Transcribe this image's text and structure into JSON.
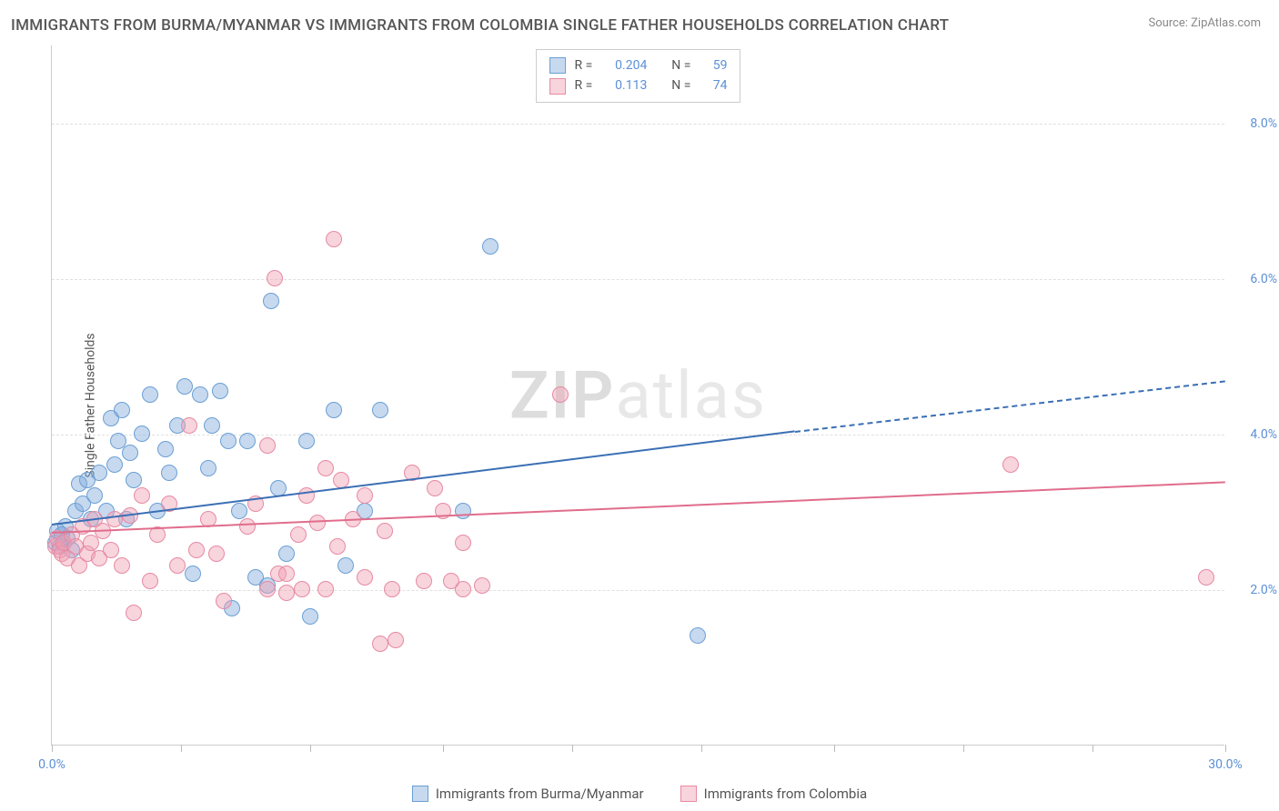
{
  "title": "IMMIGRANTS FROM BURMA/MYANMAR VS IMMIGRANTS FROM COLOMBIA SINGLE FATHER HOUSEHOLDS CORRELATION CHART",
  "source": "Source: ZipAtlas.com",
  "y_axis_label": "Single Father Households",
  "watermark_a": "ZIP",
  "watermark_b": "atlas",
  "colors": {
    "series_blue_fill": "rgba(130,170,220,0.45)",
    "series_blue_stroke": "#6a9fd4",
    "series_pink_fill": "rgba(240,160,180,0.45)",
    "series_pink_stroke": "#e68aa3",
    "trend_blue": "#3b6fb5",
    "trend_pink": "#e06d8c",
    "tick_label": "#5b8fd6",
    "grid": "#e0e0e0"
  },
  "xlim": [
    0,
    30
  ],
  "ylim": [
    0,
    9
  ],
  "y_gridlines": [
    2.0,
    4.0,
    6.0,
    8.0
  ],
  "y_tick_labels": [
    "2.0%",
    "4.0%",
    "6.0%",
    "8.0%"
  ],
  "x_ticks": [
    0,
    3.3,
    6.6,
    10,
    13.3,
    16.6,
    20,
    23.3,
    26.6,
    30
  ],
  "x_tick_labels": {
    "0": "0.0%",
    "30": "30.0%"
  },
  "marker_radius": 9,
  "stat_legend": [
    {
      "swatch_fill": "rgba(130,170,220,0.45)",
      "swatch_stroke": "#6a9fd4",
      "r_label": "R =",
      "r": "0.204",
      "n_label": "N =",
      "n": "59"
    },
    {
      "swatch_fill": "rgba(240,160,180,0.45)",
      "swatch_stroke": "#e68aa3",
      "r_label": "R =",
      "r": "0.113",
      "n_label": "N =",
      "n": "74"
    }
  ],
  "bottom_legend": [
    {
      "swatch_fill": "rgba(130,170,220,0.45)",
      "swatch_stroke": "#6a9fd4",
      "label": "Immigrants from Burma/Myanmar"
    },
    {
      "swatch_fill": "rgba(240,160,180,0.45)",
      "swatch_stroke": "#e68aa3",
      "label": "Immigrants from Colombia"
    }
  ],
  "series": [
    {
      "name": "burma",
      "fill": "rgba(130,170,220,0.45)",
      "stroke": "#6a9fd4",
      "trend": {
        "x1": 0,
        "y1": 2.85,
        "x2_solid": 19,
        "y2_solid": 4.05,
        "x2_dash": 30,
        "y2_dash": 4.7,
        "color": "#3b6fb5"
      },
      "points": [
        [
          0.1,
          2.6
        ],
        [
          0.15,
          2.75
        ],
        [
          0.2,
          2.55
        ],
        [
          0.25,
          2.7
        ],
        [
          0.3,
          2.6
        ],
        [
          0.35,
          2.8
        ],
        [
          0.4,
          2.65
        ],
        [
          0.5,
          2.5
        ],
        [
          0.6,
          3.0
        ],
        [
          0.7,
          3.35
        ],
        [
          0.8,
          3.1
        ],
        [
          0.9,
          3.4
        ],
        [
          1.0,
          2.9
        ],
        [
          1.1,
          3.2
        ],
        [
          1.2,
          3.5
        ],
        [
          1.4,
          3.0
        ],
        [
          1.5,
          4.2
        ],
        [
          1.6,
          3.6
        ],
        [
          1.7,
          3.9
        ],
        [
          1.8,
          4.3
        ],
        [
          1.9,
          2.9
        ],
        [
          2.0,
          3.75
        ],
        [
          2.1,
          3.4
        ],
        [
          2.3,
          4.0
        ],
        [
          2.5,
          4.5
        ],
        [
          2.7,
          3.0
        ],
        [
          2.9,
          3.8
        ],
        [
          3.0,
          3.5
        ],
        [
          3.2,
          4.1
        ],
        [
          3.4,
          4.6
        ],
        [
          3.6,
          2.2
        ],
        [
          3.8,
          4.5
        ],
        [
          4.0,
          3.55
        ],
        [
          4.1,
          4.1
        ],
        [
          4.3,
          4.55
        ],
        [
          4.5,
          3.9
        ],
        [
          4.6,
          1.75
        ],
        [
          4.8,
          3.0
        ],
        [
          5.0,
          3.9
        ],
        [
          5.2,
          2.15
        ],
        [
          5.5,
          2.05
        ],
        [
          5.6,
          5.7
        ],
        [
          5.8,
          3.3
        ],
        [
          6.0,
          2.45
        ],
        [
          6.5,
          3.9
        ],
        [
          6.6,
          1.65
        ],
        [
          7.2,
          4.3
        ],
        [
          7.5,
          2.3
        ],
        [
          8.0,
          3.0
        ],
        [
          8.4,
          4.3
        ],
        [
          10.5,
          3.0
        ],
        [
          11.2,
          6.4
        ],
        [
          16.5,
          1.4
        ]
      ]
    },
    {
      "name": "colombia",
      "fill": "rgba(240,160,180,0.45)",
      "stroke": "#e68aa3",
      "trend": {
        "x1": 0,
        "y1": 2.75,
        "x2_solid": 30,
        "y2_solid": 3.4,
        "color": "#e06d8c"
      },
      "points": [
        [
          0.1,
          2.55
        ],
        [
          0.15,
          2.65
        ],
        [
          0.2,
          2.5
        ],
        [
          0.25,
          2.45
        ],
        [
          0.3,
          2.6
        ],
        [
          0.4,
          2.4
        ],
        [
          0.5,
          2.7
        ],
        [
          0.6,
          2.55
        ],
        [
          0.7,
          2.3
        ],
        [
          0.8,
          2.8
        ],
        [
          0.9,
          2.45
        ],
        [
          1.0,
          2.6
        ],
        [
          1.1,
          2.9
        ],
        [
          1.2,
          2.4
        ],
        [
          1.3,
          2.75
        ],
        [
          1.5,
          2.5
        ],
        [
          1.6,
          2.9
        ],
        [
          1.8,
          2.3
        ],
        [
          2.0,
          2.95
        ],
        [
          2.1,
          1.7
        ],
        [
          2.3,
          3.2
        ],
        [
          2.5,
          2.1
        ],
        [
          2.7,
          2.7
        ],
        [
          3.0,
          3.1
        ],
        [
          3.2,
          2.3
        ],
        [
          3.5,
          4.1
        ],
        [
          3.7,
          2.5
        ],
        [
          4.0,
          2.9
        ],
        [
          4.2,
          2.45
        ],
        [
          4.4,
          1.85
        ],
        [
          5.0,
          2.8
        ],
        [
          5.2,
          3.1
        ],
        [
          5.5,
          3.85
        ],
        [
          5.5,
          2.0
        ],
        [
          5.7,
          6.0
        ],
        [
          5.8,
          2.2
        ],
        [
          6.0,
          2.2
        ],
        [
          6.0,
          1.95
        ],
        [
          6.3,
          2.7
        ],
        [
          6.4,
          2.0
        ],
        [
          6.5,
          3.2
        ],
        [
          6.8,
          2.85
        ],
        [
          7.0,
          3.55
        ],
        [
          7.0,
          2.0
        ],
        [
          7.2,
          6.5
        ],
        [
          7.3,
          2.55
        ],
        [
          7.4,
          3.4
        ],
        [
          7.7,
          2.9
        ],
        [
          8.0,
          3.2
        ],
        [
          8.0,
          2.15
        ],
        [
          8.4,
          1.3
        ],
        [
          8.5,
          2.75
        ],
        [
          8.7,
          2.0
        ],
        [
          8.8,
          1.35
        ],
        [
          9.2,
          3.5
        ],
        [
          9.5,
          2.1
        ],
        [
          9.8,
          3.3
        ],
        [
          10.0,
          3.0
        ],
        [
          10.2,
          2.1
        ],
        [
          10.5,
          2.6
        ],
        [
          10.5,
          2.0
        ],
        [
          11.0,
          2.05
        ],
        [
          13.0,
          4.5
        ],
        [
          24.5,
          3.6
        ],
        [
          29.5,
          2.15
        ]
      ]
    }
  ]
}
